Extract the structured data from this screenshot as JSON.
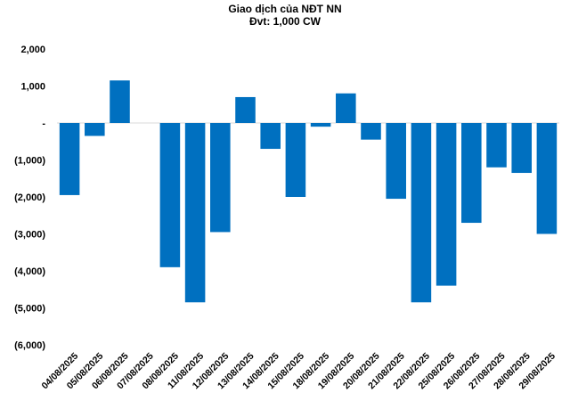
{
  "chart_data": {
    "type": "bar",
    "title": "Giao dịch của NĐT NN",
    "subtitle": "Đvt: 1,000 CW",
    "xlabel": "",
    "ylabel": "",
    "ylim": [
      -6000,
      2000
    ],
    "yticks": [
      2000,
      1000,
      0,
      -1000,
      -2000,
      -3000,
      -4000,
      -5000,
      -6000
    ],
    "ytick_labels": [
      "2,000",
      "1,000",
      "-",
      "(1,000)",
      "(2,000)",
      "(3,000)",
      "(4,000)",
      "(5,000)",
      "(6,000)"
    ],
    "grid": false,
    "legend": "none",
    "bar_color": "#0070C0",
    "categories": [
      "04/08/2025",
      "05/08/2025",
      "06/08/2025",
      "07/08/2025",
      "08/08/2025",
      "11/08/2025",
      "12/08/2025",
      "13/08/2025",
      "14/08/2025",
      "15/08/2025",
      "18/08/2025",
      "19/08/2025",
      "20/08/2025",
      "21/08/2025",
      "22/08/2025",
      "25/08/2025",
      "26/08/2025",
      "27/08/2025",
      "28/08/2025",
      "29/08/2025"
    ],
    "values": [
      -1950,
      -350,
      1150,
      0,
      -3900,
      -4850,
      -2950,
      700,
      -700,
      -2000,
      -100,
      800,
      -450,
      -2050,
      -4850,
      -4400,
      -2700,
      -1200,
      -1350,
      -3000
    ]
  }
}
